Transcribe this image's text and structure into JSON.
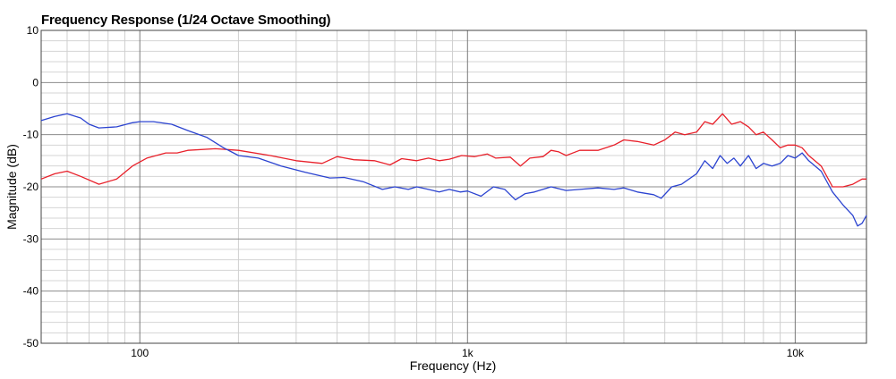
{
  "chart_data": {
    "type": "line",
    "title": "Frequency Response (1/24 Octave Smoothing)",
    "xlabel": "Frequency (Hz)",
    "ylabel": "Magnitude (dB)",
    "xscale": "log",
    "xlim": [
      50,
      16500
    ],
    "ylim": [
      -50,
      10
    ],
    "grid": true,
    "x_tick_labels": [
      {
        "value": 100,
        "label": "100"
      },
      {
        "value": 1000,
        "label": "1k"
      },
      {
        "value": 10000,
        "label": "10k"
      }
    ],
    "y_tick_labels": [
      {
        "value": 10,
        "label": "10"
      },
      {
        "value": 0,
        "label": "0"
      },
      {
        "value": -10,
        "label": "-10"
      },
      {
        "value": -20,
        "label": "-20"
      },
      {
        "value": -30,
        "label": "-30"
      },
      {
        "value": -40,
        "label": "-40"
      },
      {
        "value": -50,
        "label": "-50"
      }
    ],
    "series": [
      {
        "color": "#e8202a",
        "points": [
          [
            50,
            -18.5
          ],
          [
            55,
            -17.5
          ],
          [
            60,
            -17
          ],
          [
            66,
            -18
          ],
          [
            75,
            -19.5
          ],
          [
            85,
            -18.5
          ],
          [
            95,
            -16
          ],
          [
            105,
            -14.5
          ],
          [
            120,
            -13.5
          ],
          [
            130,
            -13.5
          ],
          [
            140,
            -13
          ],
          [
            170,
            -12.7
          ],
          [
            200,
            -13
          ],
          [
            250,
            -14
          ],
          [
            300,
            -15
          ],
          [
            360,
            -15.5
          ],
          [
            400,
            -14.2
          ],
          [
            450,
            -14.8
          ],
          [
            520,
            -15
          ],
          [
            580,
            -15.8
          ],
          [
            630,
            -14.6
          ],
          [
            700,
            -15
          ],
          [
            760,
            -14.5
          ],
          [
            820,
            -15
          ],
          [
            880,
            -14.7
          ],
          [
            960,
            -14
          ],
          [
            1050,
            -14.2
          ],
          [
            1150,
            -13.7
          ],
          [
            1220,
            -14.5
          ],
          [
            1350,
            -14.3
          ],
          [
            1450,
            -16
          ],
          [
            1550,
            -14.5
          ],
          [
            1700,
            -14.2
          ],
          [
            1800,
            -13
          ],
          [
            1900,
            -13.3
          ],
          [
            2000,
            -14
          ],
          [
            2200,
            -13
          ],
          [
            2500,
            -13
          ],
          [
            2800,
            -12
          ],
          [
            3000,
            -11
          ],
          [
            3300,
            -11.3
          ],
          [
            3700,
            -12
          ],
          [
            4000,
            -11
          ],
          [
            4300,
            -9.5
          ],
          [
            4600,
            -10
          ],
          [
            5000,
            -9.5
          ],
          [
            5300,
            -7.5
          ],
          [
            5600,
            -8
          ],
          [
            6000,
            -6
          ],
          [
            6400,
            -8
          ],
          [
            6800,
            -7.5
          ],
          [
            7200,
            -8.5
          ],
          [
            7600,
            -10
          ],
          [
            8000,
            -9.5
          ],
          [
            8500,
            -11
          ],
          [
            9000,
            -12.5
          ],
          [
            9500,
            -12
          ],
          [
            10000,
            -12
          ],
          [
            10500,
            -12.5
          ],
          [
            11000,
            -14
          ],
          [
            12000,
            -16
          ],
          [
            13000,
            -20
          ],
          [
            14000,
            -20
          ],
          [
            15000,
            -19.5
          ],
          [
            16000,
            -18.5
          ],
          [
            16500,
            -18.5
          ]
        ]
      },
      {
        "color": "#2b43d0",
        "points": [
          [
            50,
            -7.3
          ],
          [
            55,
            -6.5
          ],
          [
            60,
            -6
          ],
          [
            66,
            -6.8
          ],
          [
            70,
            -8
          ],
          [
            75,
            -8.7
          ],
          [
            85,
            -8.5
          ],
          [
            95,
            -7.7
          ],
          [
            100,
            -7.5
          ],
          [
            110,
            -7.5
          ],
          [
            125,
            -8
          ],
          [
            140,
            -9.2
          ],
          [
            160,
            -10.5
          ],
          [
            180,
            -12.5
          ],
          [
            200,
            -14
          ],
          [
            230,
            -14.5
          ],
          [
            270,
            -16
          ],
          [
            320,
            -17.2
          ],
          [
            380,
            -18.3
          ],
          [
            420,
            -18.2
          ],
          [
            480,
            -19
          ],
          [
            550,
            -20.5
          ],
          [
            600,
            -20
          ],
          [
            660,
            -20.5
          ],
          [
            700,
            -20
          ],
          [
            760,
            -20.5
          ],
          [
            820,
            -21
          ],
          [
            880,
            -20.5
          ],
          [
            950,
            -21
          ],
          [
            1000,
            -20.8
          ],
          [
            1100,
            -21.8
          ],
          [
            1200,
            -20
          ],
          [
            1300,
            -20.5
          ],
          [
            1400,
            -22.5
          ],
          [
            1500,
            -21.3
          ],
          [
            1600,
            -21
          ],
          [
            1800,
            -20
          ],
          [
            2000,
            -20.7
          ],
          [
            2200,
            -20.5
          ],
          [
            2500,
            -20.2
          ],
          [
            2800,
            -20.5
          ],
          [
            3000,
            -20.2
          ],
          [
            3300,
            -21
          ],
          [
            3700,
            -21.5
          ],
          [
            3900,
            -22.2
          ],
          [
            4200,
            -20
          ],
          [
            4500,
            -19.5
          ],
          [
            5000,
            -17.5
          ],
          [
            5300,
            -15
          ],
          [
            5600,
            -16.5
          ],
          [
            5900,
            -14
          ],
          [
            6200,
            -15.5
          ],
          [
            6500,
            -14.5
          ],
          [
            6800,
            -16
          ],
          [
            7200,
            -14
          ],
          [
            7600,
            -16.5
          ],
          [
            8000,
            -15.5
          ],
          [
            8500,
            -16
          ],
          [
            9000,
            -15.5
          ],
          [
            9500,
            -14
          ],
          [
            10000,
            -14.5
          ],
          [
            10500,
            -13.5
          ],
          [
            11000,
            -15
          ],
          [
            12000,
            -17
          ],
          [
            13000,
            -21
          ],
          [
            14000,
            -23.5
          ],
          [
            15000,
            -25.5
          ],
          [
            15500,
            -27.5
          ],
          [
            16000,
            -27
          ],
          [
            16500,
            -25.5
          ]
        ]
      }
    ]
  }
}
